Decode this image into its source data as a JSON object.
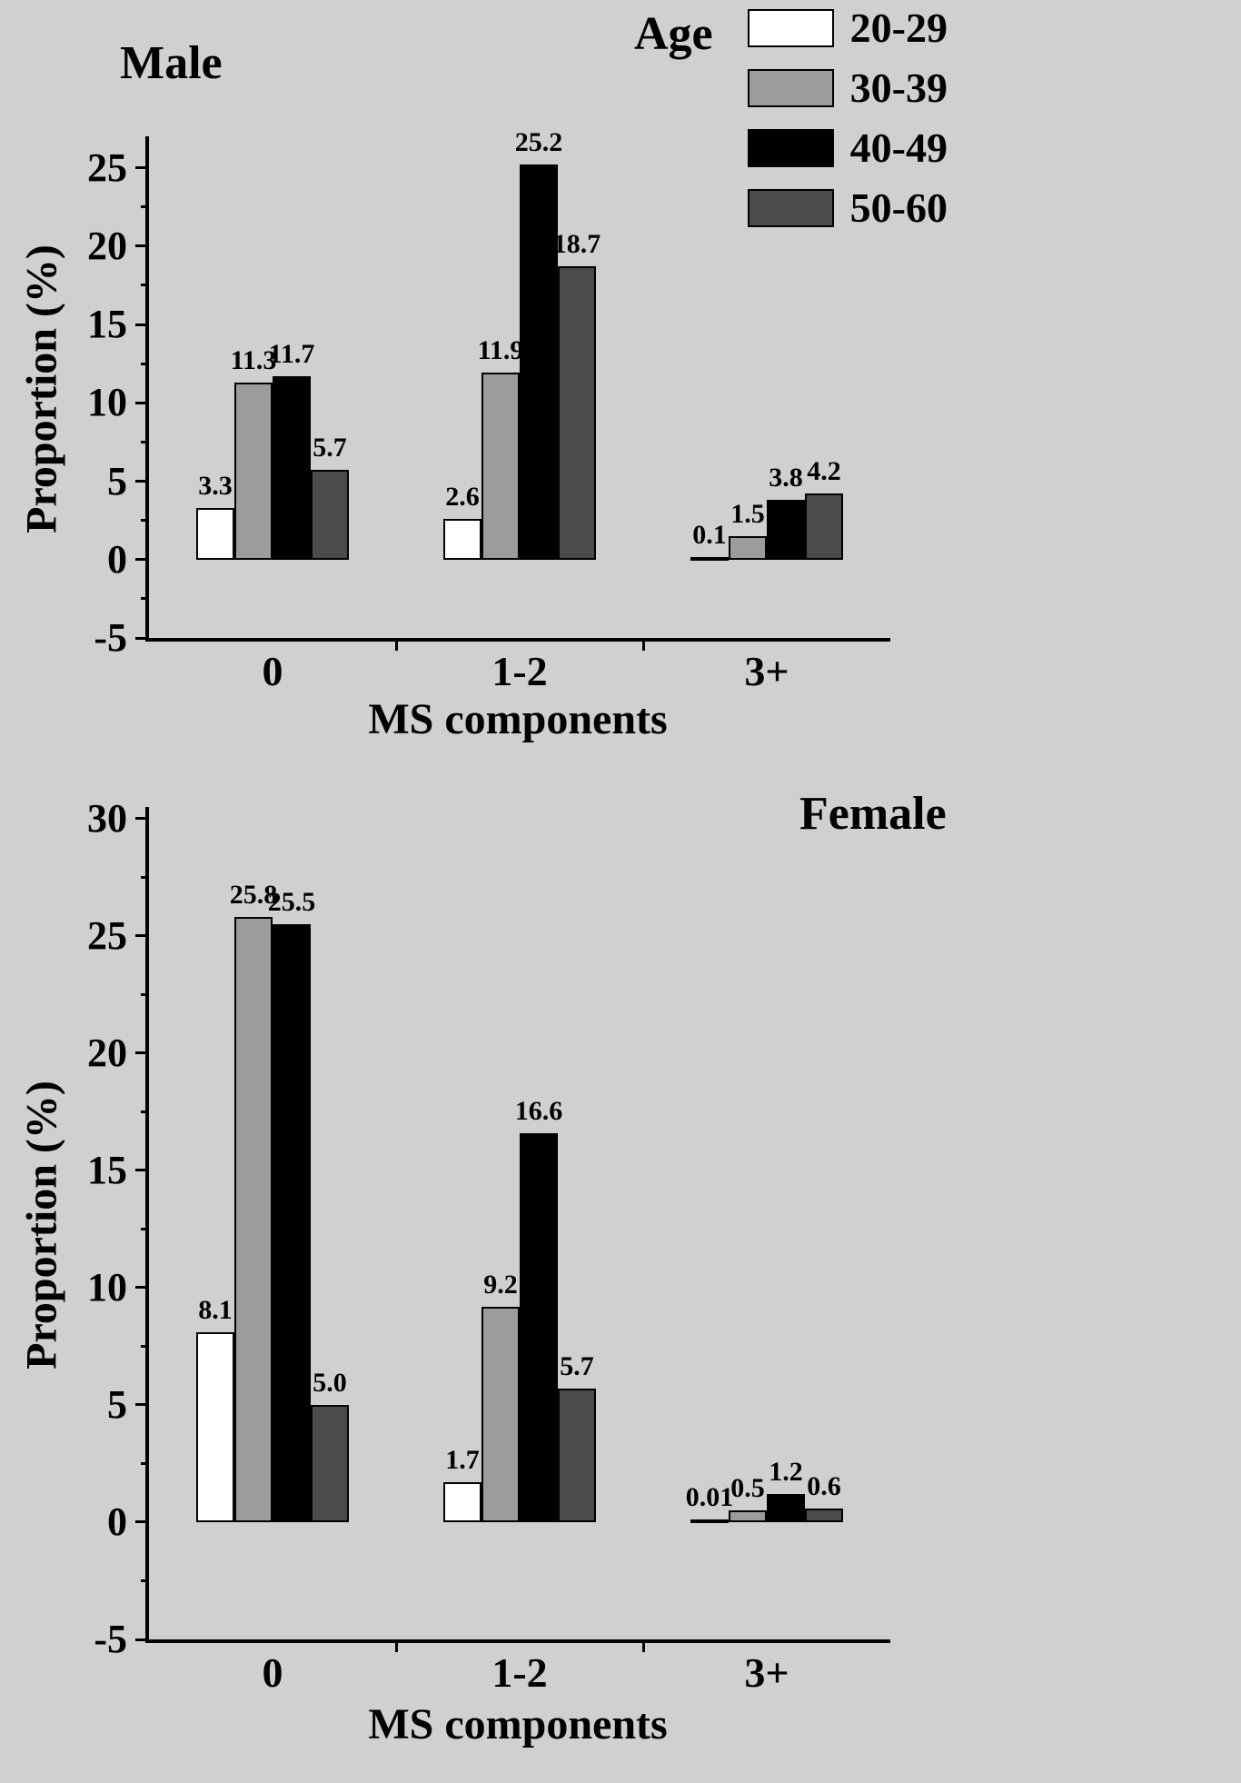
{
  "figure": {
    "background": "#d0d0d0",
    "legend": {
      "title": "Age",
      "entries": [
        {
          "label": "20-29",
          "color": "#ffffff"
        },
        {
          "label": "30-39",
          "color": "#9c9c9c"
        },
        {
          "label": "40-49",
          "color": "#000000"
        },
        {
          "label": "50-60",
          "color": "#4b4b4b"
        }
      ]
    }
  },
  "chart_data": [
    {
      "type": "bar",
      "title": "Male",
      "xlabel": "MS components",
      "ylabel": "Proportion (%)",
      "categories": [
        "0",
        "1-2",
        "3+"
      ],
      "series": [
        {
          "name": "20-29",
          "color": "#ffffff",
          "values": [
            3.3,
            2.6,
            0.1
          ],
          "labels": [
            "3.3",
            "2.6",
            "0.1"
          ]
        },
        {
          "name": "30-39",
          "color": "#9c9c9c",
          "values": [
            11.3,
            11.9,
            1.5
          ],
          "labels": [
            "11.3",
            "11.9",
            "1.5"
          ]
        },
        {
          "name": "40-49",
          "color": "#000000",
          "values": [
            11.7,
            25.2,
            3.8
          ],
          "labels": [
            "11.7",
            "25.2",
            "3.8"
          ]
        },
        {
          "name": "50-60",
          "color": "#4b4b4b",
          "values": [
            5.7,
            18.7,
            4.2
          ],
          "labels": [
            "5.7",
            "18.7",
            "4.2"
          ]
        }
      ],
      "ylim": [
        -5,
        27
      ],
      "yticks": [
        -5,
        0,
        5,
        10,
        15,
        20,
        25
      ],
      "minor_tick_step": 2.5,
      "grid": false,
      "legend_position": "top-right"
    },
    {
      "type": "bar",
      "title": "Female",
      "xlabel": "MS components",
      "ylabel": "Proportion (%)",
      "categories": [
        "0",
        "1-2",
        "3+"
      ],
      "series": [
        {
          "name": "20-29",
          "color": "#ffffff",
          "values": [
            8.1,
            1.7,
            0.01
          ],
          "labels": [
            "8.1",
            "1.7",
            "0.01"
          ]
        },
        {
          "name": "30-39",
          "color": "#9c9c9c",
          "values": [
            25.8,
            9.2,
            0.5
          ],
          "labels": [
            "25.8",
            "9.2",
            "0.5"
          ]
        },
        {
          "name": "40-49",
          "color": "#000000",
          "values": [
            25.5,
            16.6,
            1.2
          ],
          "labels": [
            "25.5",
            "16.6",
            "1.2"
          ]
        },
        {
          "name": "50-60",
          "color": "#4b4b4b",
          "values": [
            5.0,
            5.7,
            0.6
          ],
          "labels": [
            "5.0",
            "5.7",
            "0.6"
          ]
        }
      ],
      "ylim": [
        -5,
        30.5
      ],
      "yticks": [
        -5,
        0,
        5,
        10,
        15,
        20,
        25,
        30
      ],
      "minor_tick_step": 2.5,
      "grid": false,
      "legend_position": "none"
    }
  ]
}
